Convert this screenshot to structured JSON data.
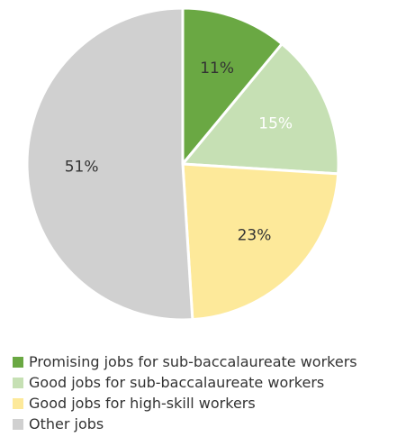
{
  "chart_data": {
    "type": "pie",
    "series": [
      {
        "name": "Promising jobs for sub-baccalaureate workers",
        "value": 11,
        "label": "11%",
        "color": "#6aa843",
        "label_color": "#333333"
      },
      {
        "name": "Good jobs for sub-baccalaureate workers",
        "value": 15,
        "label": "15%",
        "color": "#c6e0b4",
        "label_color": "#ffffff"
      },
      {
        "name": "Good jobs for high-skill workers",
        "value": 23,
        "label": "23%",
        "color": "#fde99a",
        "label_color": "#333333"
      },
      {
        "name": "Other jobs",
        "value": 51,
        "label": "51%",
        "color": "#d0d0d0",
        "label_color": "#333333"
      }
    ],
    "legend_position": "bottom-left"
  }
}
